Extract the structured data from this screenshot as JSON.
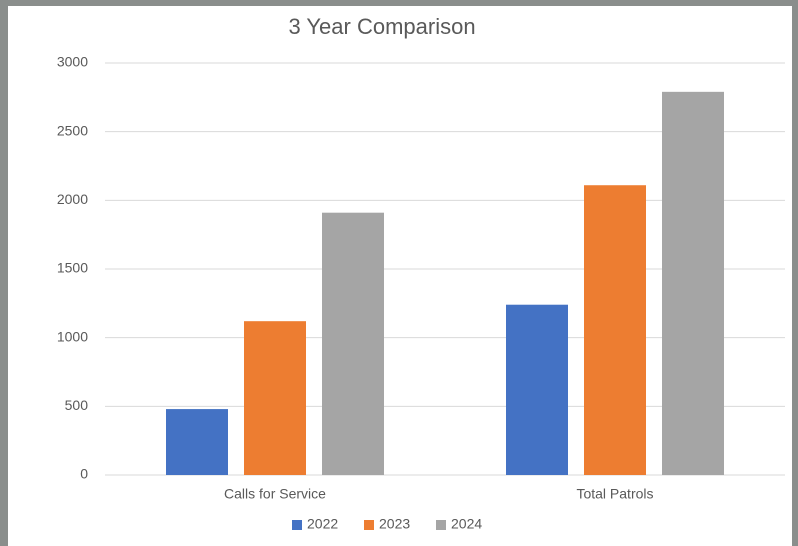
{
  "chart_data": {
    "type": "bar",
    "title": "3 Year Comparison",
    "categories": [
      "Calls for Service",
      "Total Patrols"
    ],
    "series": [
      {
        "name": "2022",
        "color": "#4472c4",
        "values": [
          480,
          1240
        ]
      },
      {
        "name": "2023",
        "color": "#ed7d31",
        "values": [
          1120,
          2110
        ]
      },
      {
        "name": "2024",
        "color": "#a5a5a5",
        "values": [
          1910,
          2790
        ]
      }
    ],
    "ylim": [
      0,
      3000
    ],
    "yticks": [
      0,
      500,
      1000,
      1500,
      2000,
      2500,
      3000
    ],
    "grid": true,
    "legend": "bottom"
  }
}
